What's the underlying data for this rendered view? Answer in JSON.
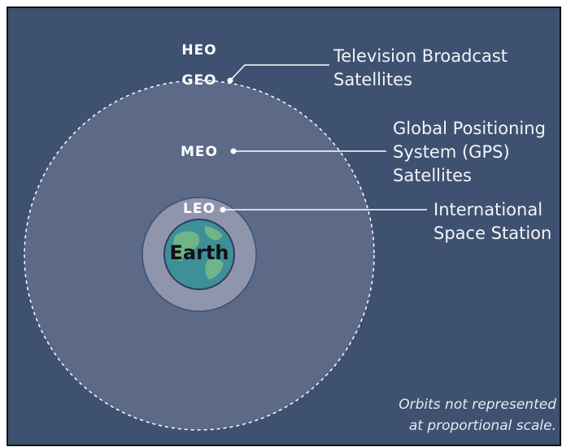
{
  "orbits": [
    {
      "label": "HEO"
    },
    {
      "label": "GEO"
    },
    {
      "label": "MEO"
    },
    {
      "label": "LEO"
    }
  ],
  "earth": {
    "label": "Earth"
  },
  "satellites": [
    {
      "lines": [
        "Television Broadcast",
        "Satellites"
      ]
    },
    {
      "lines": [
        "Global Positioning",
        "System (GPS)",
        "Satellites"
      ]
    },
    {
      "lines": [
        "International",
        "Space Station"
      ]
    }
  ],
  "note": {
    "lines": [
      "Orbits not represented",
      "at proportional scale."
    ]
  }
}
